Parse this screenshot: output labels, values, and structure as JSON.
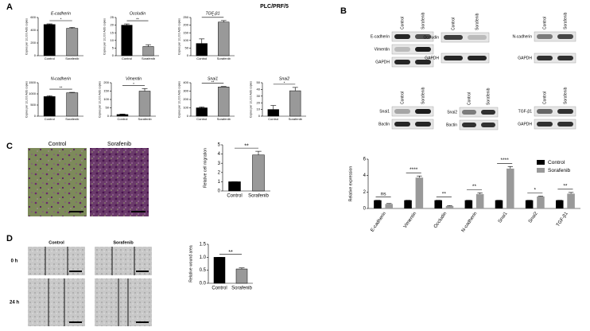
{
  "figure_title": "PLC/PRF/5",
  "panel_labels": [
    "A",
    "B",
    "C",
    "D"
  ],
  "chart_data": [
    {
      "type": "bar",
      "title": "E-cadherin",
      "ylabel": "Copies per 10,000 Actb copies",
      "categories": [
        "Control",
        "Sorafenib"
      ],
      "values": [
        490,
        430
      ],
      "errors": [
        10,
        15
      ],
      "colors": [
        "#000000",
        "#999999"
      ],
      "ylim": [
        0,
        600
      ],
      "yticks": [
        0,
        200,
        400,
        600
      ],
      "significance": "*"
    },
    {
      "type": "bar",
      "title": "Occludin",
      "ylabel": "Copies per 10,000 Actb copies",
      "categories": [
        "Control",
        "Sorafenib"
      ],
      "values": [
        20,
        6
      ],
      "errors": [
        0.8,
        1.2
      ],
      "colors": [
        "#000000",
        "#999999"
      ],
      "ylim": [
        0,
        25
      ],
      "yticks": [
        0,
        5,
        10,
        15,
        20,
        25
      ],
      "significance": "**"
    },
    {
      "type": "bar",
      "title": "TGF-β1",
      "ylabel": "Copies per 10,000 Actb copies",
      "categories": [
        "Control",
        "Sorafenib"
      ],
      "values": [
        80,
        220
      ],
      "errors": [
        30,
        10
      ],
      "colors": [
        "#000000",
        "#999999"
      ],
      "ylim": [
        0,
        250
      ],
      "yticks": [
        0,
        50,
        100,
        150,
        200,
        250
      ],
      "significance": "*"
    },
    {
      "type": "bar",
      "title": "N-cadherin",
      "ylabel": "Copies per 10,000 Actb copies",
      "categories": [
        "Control",
        "Sorafenib"
      ],
      "values": [
        880,
        1050
      ],
      "errors": [
        40,
        20
      ],
      "colors": [
        "#000000",
        "#999999"
      ],
      "ylim": [
        0,
        1500
      ],
      "yticks": [
        0,
        500,
        1000,
        1500
      ],
      "significance": "**"
    },
    {
      "type": "bar",
      "title": "Vimentin",
      "ylabel": "Copies per 10,000 Actb copies",
      "categories": [
        "Control",
        "Sorafenib"
      ],
      "values": [
        10,
        150
      ],
      "errors": [
        3,
        15
      ],
      "colors": [
        "#000000",
        "#999999"
      ],
      "ylim": [
        0,
        200
      ],
      "yticks": [
        0,
        50,
        100,
        150,
        200
      ],
      "significance": "*"
    },
    {
      "type": "bar",
      "title": "Snai1",
      "ylabel": "Copies per 10,000 Actb copies",
      "categories": [
        "Control",
        "Sorafenib"
      ],
      "values": [
        100,
        350
      ],
      "errors": [
        10,
        5
      ],
      "colors": [
        "#000000",
        "#999999"
      ],
      "ylim": [
        0,
        400
      ],
      "yticks": [
        0,
        100,
        200,
        300,
        400
      ],
      "significance": "**"
    },
    {
      "type": "bar",
      "title": "Snai2",
      "ylabel": "Copies per 10,000 Actb copies",
      "categories": [
        "Control",
        "Sorafenib"
      ],
      "values": [
        10,
        38
      ],
      "errors": [
        6,
        5
      ],
      "colors": [
        "#000000",
        "#999999"
      ],
      "ylim": [
        0,
        50
      ],
      "yticks": [
        0,
        10,
        20,
        30,
        40,
        50
      ],
      "significance": "*"
    },
    {
      "type": "grouped_bar",
      "ylabel": "Relative expression",
      "categories": [
        "E-cadherin",
        "Vimentin",
        "Occludin",
        "N-cadherin",
        "Snai1",
        "Snai2",
        "TGF-β1"
      ],
      "series": [
        {
          "name": "Control",
          "color": "#000000",
          "values": [
            1,
            1,
            1,
            1,
            1,
            1,
            1
          ],
          "errors": [
            0,
            0,
            0,
            0,
            0,
            0,
            0
          ]
        },
        {
          "name": "Sorafenib",
          "color": "#999999",
          "values": [
            0.55,
            3.75,
            0.3,
            1.75,
            4.85,
            1.45,
            1.8
          ],
          "errors": [
            0.05,
            0.2,
            0.05,
            0.15,
            0.25,
            0.05,
            0.15
          ]
        }
      ],
      "ylim": [
        0,
        6
      ],
      "yticks": [
        0,
        2,
        4,
        6
      ],
      "significance": [
        "ns",
        "****",
        "**",
        "**",
        "****",
        "*",
        "**"
      ],
      "legend": "upper-right"
    },
    {
      "type": "bar",
      "ylabel": "Relative cell migration",
      "categories": [
        "Control",
        "Sorafenib"
      ],
      "values": [
        1,
        3.9
      ],
      "errors": [
        0,
        0.4
      ],
      "colors": [
        "#000000",
        "#999999"
      ],
      "ylim": [
        0,
        5
      ],
      "yticks": [
        0,
        1,
        2,
        3,
        4,
        5
      ],
      "significance": "**"
    },
    {
      "type": "bar",
      "ylabel": "Relative wound area",
      "categories": [
        "Control",
        "Sorafenib"
      ],
      "values": [
        1,
        0.55
      ],
      "errors": [
        0,
        0.04
      ],
      "colors": [
        "#000000",
        "#999999"
      ],
      "ylim": [
        0,
        1.5
      ],
      "yticks": [
        {
          "value": 0,
          "label": "0.0"
        },
        {
          "value": 0.5,
          "label": "0.5"
        },
        {
          "value": 1,
          "label": "1.0"
        },
        {
          "value": 1.5,
          "label": "1.5"
        }
      ],
      "significance": "**"
    }
  ],
  "blots": [
    {
      "columns": [
        "Control",
        "Sorafenib"
      ],
      "rows": [
        "E-cadherin",
        "Vimentin",
        "GAPDH"
      ]
    },
    {
      "columns": [
        "Control",
        "Sorafenib"
      ],
      "rows": [
        "Occludin",
        "GAPDH"
      ]
    },
    {
      "columns": [
        "Control",
        "Sorafenib"
      ],
      "rows": [
        "N-cadherin",
        "GAPDH"
      ]
    },
    {
      "columns": [
        "Control",
        "Sorafenib"
      ],
      "rows": [
        "Snai1",
        "Bactin"
      ]
    },
    {
      "columns": [
        "Control",
        "Sorafenib"
      ],
      "rows": [
        "Snai2",
        "Bactin"
      ]
    },
    {
      "columns": [
        "Control",
        "Sorafenib"
      ],
      "rows": [
        "TGF-β1",
        "GAPDH"
      ]
    }
  ],
  "migration_images": {
    "columns": [
      "Control",
      "Sorafenib"
    ]
  },
  "wound_images": {
    "columns": [
      "Control",
      "Sorafenib"
    ],
    "rows": [
      "0 h",
      "24 h"
    ]
  }
}
